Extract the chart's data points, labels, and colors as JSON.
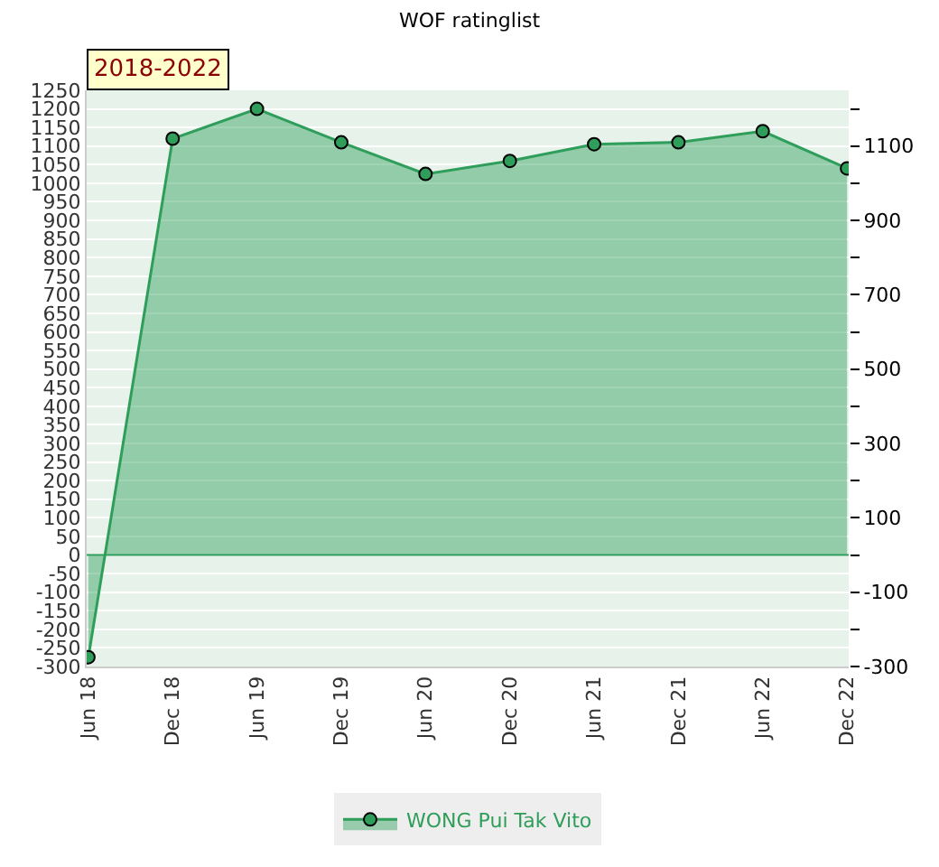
{
  "chart_data": {
    "type": "area",
    "title": "WOF ratinglist",
    "annotations": [
      "2018-2022"
    ],
    "categories": [
      "Jun 18",
      "Dec 18",
      "Jun 19",
      "Dec 19",
      "Jun 20",
      "Dec 20",
      "Jun 21",
      "Dec 21",
      "Jun 22",
      "Dec 22"
    ],
    "series": [
      {
        "name": "WONG Pui Tak Vito",
        "color": "#2e9e5a",
        "values": [
          -275,
          1120,
          1200,
          1110,
          1025,
          1060,
          1105,
          1110,
          1140,
          1040
        ]
      }
    ],
    "ylim": [
      -300,
      1250
    ],
    "yticks": [
      -300,
      -250,
      -200,
      -150,
      -100,
      -50,
      0,
      50,
      100,
      150,
      200,
      250,
      300,
      350,
      400,
      450,
      500,
      550,
      600,
      650,
      700,
      750,
      800,
      850,
      900,
      950,
      1000,
      1050,
      1100,
      1150,
      1200,
      1250
    ],
    "y2lim": [
      -300,
      1250
    ],
    "y2ticks": [
      -300,
      {
        "value": -200,
        "label": null
      },
      -100,
      {
        "value": 0,
        "label": null
      },
      100,
      {
        "value": 200,
        "label": null
      },
      300,
      {
        "value": 400,
        "label": null
      },
      500,
      {
        "value": 600,
        "label": null
      },
      700,
      {
        "value": 800,
        "label": null
      },
      900,
      {
        "value": 1000,
        "label": null
      },
      1100,
      {
        "value": 1200,
        "label": null
      }
    ],
    "ref_lines": [
      {
        "axis": "y",
        "value": 0,
        "color": "#2e9e5a"
      }
    ],
    "grid": "y",
    "legend": "bottom",
    "marker": "circle",
    "line_style": "solid"
  }
}
